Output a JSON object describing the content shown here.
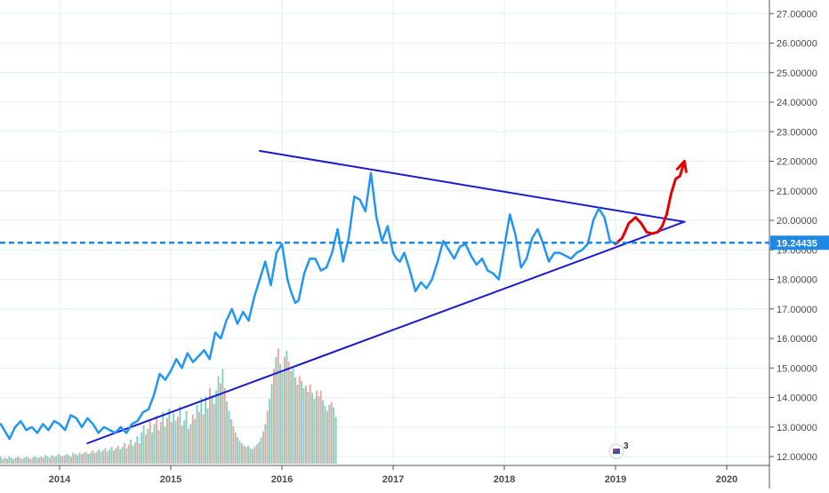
{
  "chart_data": {
    "type": "line",
    "title": "",
    "xlabel": "",
    "ylabel": "",
    "x_ticks": [
      "2014",
      "2015",
      "2016",
      "2017",
      "2018",
      "2019",
      "2020"
    ],
    "y_ticks": [
      "12.00000",
      "13.00000",
      "14.00000",
      "15.00000",
      "16.00000",
      "17.00000",
      "18.00000",
      "19.00000",
      "20.00000",
      "21.00000",
      "22.00000",
      "23.00000",
      "24.00000",
      "25.00000",
      "26.00000",
      "27.00000"
    ],
    "xlim": [
      2013.47,
      2020.5
    ],
    "ylim": [
      11.8,
      27.5
    ],
    "grid": true,
    "last_price": "19.24435",
    "last_price_value": 19.24,
    "event_badge": "3",
    "colors": {
      "price_line": "#2196f3",
      "trend_lines": "#1a1ad4",
      "projection": "#e60000",
      "level_line": "#1e88e5",
      "volume_up": "#7fd1c4",
      "volume_down": "#f4a29c",
      "grid": "#e7edf3",
      "axis_text": "#4a4a4a"
    },
    "series": [
      {
        "role": "price",
        "x": [
          2013.47,
          2013.55,
          2013.6,
          2013.65,
          2013.7,
          2013.75,
          2013.8,
          2013.85,
          2013.9,
          2013.95,
          2014.0,
          2014.05,
          2014.1,
          2014.15,
          2014.2,
          2014.25,
          2014.3,
          2014.35,
          2014.4,
          2014.45,
          2014.5,
          2014.55,
          2014.6,
          2014.65,
          2014.7,
          2014.75,
          2014.8,
          2014.85,
          2014.9,
          2014.95,
          2015.0,
          2015.05,
          2015.1,
          2015.15,
          2015.2,
          2015.25,
          2015.3,
          2015.35,
          2015.4,
          2015.45,
          2015.5,
          2015.55,
          2015.6,
          2015.65,
          2015.7,
          2015.75,
          2015.8,
          2015.85,
          2015.9,
          2015.95,
          2016.0,
          2016.05,
          2016.08,
          2016.12,
          2016.15,
          2016.2,
          2016.25,
          2016.3,
          2016.35,
          2016.4,
          2016.45,
          2016.5,
          2016.55,
          2016.6,
          2016.65,
          2016.7,
          2016.75,
          2016.8,
          2016.85,
          2016.9,
          2016.95,
          2017.0,
          2017.03,
          2017.06,
          2017.1,
          2017.15,
          2017.2,
          2017.25,
          2017.3,
          2017.35,
          2017.4,
          2017.45,
          2017.5,
          2017.55,
          2017.6,
          2017.65,
          2017.7,
          2017.75,
          2017.8,
          2017.85,
          2017.9,
          2017.95,
          2018.0,
          2018.05,
          2018.1,
          2018.15,
          2018.2,
          2018.25,
          2018.3,
          2018.35,
          2018.4,
          2018.45,
          2018.5,
          2018.55,
          2018.6,
          2018.65,
          2018.7,
          2018.75,
          2018.8,
          2018.85,
          2018.9,
          2018.95,
          2019.0
        ],
        "y": [
          13.1,
          12.6,
          13.0,
          13.2,
          12.9,
          13.0,
          12.8,
          13.1,
          12.9,
          13.2,
          13.1,
          12.9,
          13.4,
          13.3,
          13.0,
          13.3,
          13.1,
          12.8,
          13.0,
          12.9,
          12.8,
          13.0,
          12.8,
          13.1,
          13.2,
          13.5,
          13.6,
          14.1,
          14.8,
          14.6,
          14.9,
          15.3,
          15.0,
          15.5,
          15.2,
          15.4,
          15.6,
          15.3,
          16.2,
          16.0,
          16.6,
          17.0,
          16.5,
          16.9,
          16.6,
          17.4,
          18.0,
          18.6,
          17.8,
          18.9,
          19.2,
          18.0,
          17.6,
          17.2,
          17.3,
          18.2,
          18.7,
          18.7,
          18.3,
          18.4,
          18.9,
          19.7,
          18.6,
          19.4,
          20.8,
          20.7,
          20.3,
          21.6,
          20.1,
          19.3,
          19.8,
          18.9,
          18.7,
          18.6,
          18.9,
          18.3,
          17.6,
          17.9,
          17.7,
          18.0,
          18.6,
          19.3,
          19.0,
          18.7,
          19.1,
          19.2,
          18.8,
          18.5,
          18.7,
          18.3,
          18.2,
          18.0,
          19.1,
          20.2,
          19.5,
          18.4,
          18.7,
          19.4,
          19.7,
          19.2,
          18.6,
          18.9,
          18.9,
          18.8,
          18.7,
          18.9,
          19.0,
          19.2,
          20.0,
          20.4,
          20.1,
          19.3,
          19.2
        ]
      },
      {
        "role": "upper-trend-line",
        "x": [
          2015.8,
          2019.62
        ],
        "y": [
          22.35,
          19.95
        ]
      },
      {
        "role": "lower-trend-line",
        "x": [
          2014.25,
          2019.62
        ],
        "y": [
          12.45,
          19.95
        ]
      },
      {
        "role": "projection",
        "x": [
          2019.0,
          2019.06,
          2019.12,
          2019.18,
          2019.23,
          2019.28,
          2019.33,
          2019.38,
          2019.42,
          2019.46,
          2019.5,
          2019.54,
          2019.58,
          2019.62
        ],
        "y": [
          19.2,
          19.4,
          19.9,
          20.1,
          19.9,
          19.6,
          19.55,
          19.6,
          19.8,
          20.2,
          20.9,
          21.4,
          21.5,
          22.0
        ]
      }
    ],
    "volume": {
      "x_start": 2013.47,
      "x_step": 0.0192,
      "values": [
        0.6,
        0.4,
        0.5,
        0.4,
        0.6,
        0.5,
        0.4,
        0.5,
        0.6,
        0.5,
        0.4,
        0.5,
        0.6,
        0.5,
        0.4,
        0.5,
        0.6,
        0.5,
        0.5,
        0.6,
        0.5,
        0.7,
        0.6,
        0.5,
        0.7,
        0.6,
        0.6,
        0.8,
        0.7,
        0.6,
        0.7,
        0.8,
        0.7,
        0.6,
        0.9,
        0.8,
        0.7,
        0.9,
        0.8,
        0.9,
        1.0,
        0.8,
        0.9,
        1.1,
        0.9,
        1.0,
        1.2,
        1.0,
        1.1,
        1.3,
        1.0,
        1.2,
        1.4,
        1.1,
        1.3,
        1.5,
        1.2,
        1.4,
        1.7,
        1.3,
        1.6,
        2.0,
        1.5,
        1.8,
        2.3,
        1.7,
        2.6,
        3.2,
        2.4,
        2.9,
        3.6,
        2.6,
        3.3,
        4.0,
        2.8,
        3.5,
        4.3,
        3.1,
        3.8,
        4.6,
        3.5,
        4.2,
        3.6,
        3.9,
        4.8,
        3.2,
        3.6,
        4.4,
        2.9,
        3.3,
        4.1,
        3.7,
        4.9,
        4.3,
        5.5,
        4.1,
        5.6,
        4.6,
        6.3,
        5.7,
        5.0,
        6.1,
        7.3,
        6.7,
        7.9,
        6.3,
        5.2,
        4.4,
        3.7,
        3.1,
        2.6,
        2.2,
        1.9,
        1.7,
        1.5,
        1.4,
        1.5,
        1.3,
        1.2,
        1.4,
        1.6,
        1.8,
        2.2,
        2.7,
        3.3,
        4.4,
        5.4,
        6.6,
        7.9,
        8.9,
        9.6,
        8.3,
        7.6,
        8.9,
        9.4,
        8.5,
        7.7,
        8.1,
        7.2,
        6.6,
        7.3,
        6.9,
        6.3,
        6.5,
        6.0,
        6.6,
        5.9,
        5.4,
        6.1,
        5.6,
        6.1,
        5.3,
        4.8,
        4.4,
        4.9,
        5.1,
        4.7,
        3.9
      ],
      "up": [
        true,
        false,
        true,
        false,
        true,
        true,
        false,
        true,
        false,
        true,
        false,
        true,
        true,
        false,
        true,
        false,
        true,
        true,
        false,
        true,
        false,
        true,
        true,
        false,
        true,
        false,
        true,
        true,
        false,
        true,
        false,
        true,
        true,
        false,
        true,
        false,
        true,
        true,
        false,
        true,
        false,
        true,
        true,
        false,
        true,
        false,
        true,
        true,
        false,
        true,
        false,
        true,
        true,
        false,
        true,
        false,
        true,
        true,
        false,
        true,
        false,
        true,
        true,
        false,
        true,
        false,
        true,
        true,
        false,
        true,
        false,
        true,
        true,
        false,
        true,
        false,
        true,
        true,
        false,
        true,
        false,
        true,
        true,
        false,
        true,
        false,
        true,
        true,
        false,
        true,
        false,
        true,
        true,
        false,
        true,
        false,
        true,
        true,
        false,
        true,
        false,
        true,
        true,
        false,
        true,
        false,
        true,
        true,
        false,
        true,
        false,
        true,
        true,
        false,
        true,
        false,
        true,
        true,
        false,
        true,
        false,
        true,
        true,
        false,
        true,
        false,
        true,
        true,
        false,
        true,
        false,
        true,
        true,
        false,
        true,
        false,
        true,
        true,
        false,
        true,
        false,
        true,
        true,
        false,
        true,
        false,
        true,
        true,
        false,
        true,
        false,
        true,
        true,
        false,
        true,
        false,
        true,
        true,
        false,
        true,
        false,
        true,
        true,
        false
      ]
    }
  }
}
